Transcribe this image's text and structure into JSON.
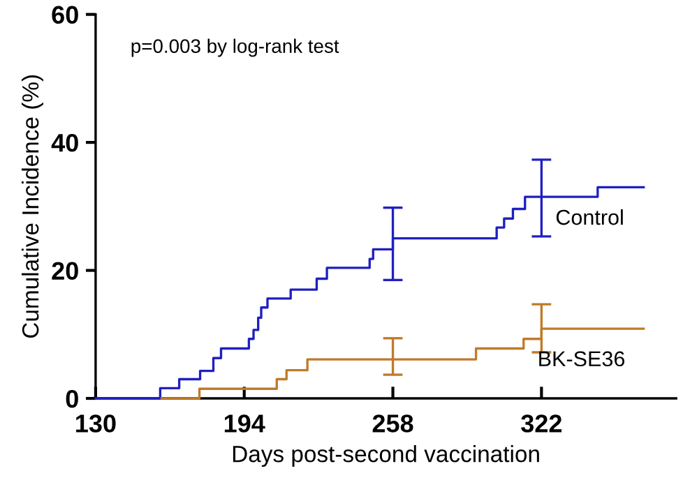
{
  "chart_data": {
    "type": "step",
    "xlabel": "Days post-second vaccination",
    "ylabel": "Cumulative Incidence (%)",
    "annotations": [
      "p=0.003 by log-rank test"
    ],
    "xlim": [
      130,
      380
    ],
    "ylim": [
      0,
      60
    ],
    "xticks": [
      130,
      194,
      258,
      322
    ],
    "yticks": [
      0,
      20,
      40,
      60
    ],
    "grid": false,
    "legend": false,
    "marker": "none",
    "line_style": "solid",
    "series": [
      {
        "name": "Control",
        "color": "#2020c0",
        "x": [
          130,
          157.8,
          166,
          175,
          180.7,
          184,
          196,
          198,
          200,
          201.3,
          204,
          214,
          225.2,
          229.6,
          248,
          249.5,
          258,
          302.7,
          305.9,
          309.7,
          314.9,
          322,
          346.2,
          366
        ],
        "values": [
          0,
          1.6,
          3.0,
          4.3,
          6.3,
          7.8,
          9.3,
          10.7,
          12.6,
          14.2,
          15.6,
          17.0,
          18.7,
          20.4,
          21.8,
          23.3,
          25.0,
          26.7,
          28.1,
          29.6,
          31.5,
          31.5,
          33.0,
          33.0
        ],
        "errors": [
          null,
          null,
          null,
          null,
          null,
          null,
          null,
          null,
          null,
          null,
          null,
          null,
          null,
          null,
          null,
          null,
          [
            18.5,
            29.8
          ],
          null,
          null,
          null,
          null,
          [
            25.3,
            37.3
          ],
          null,
          null
        ]
      },
      {
        "name": "BK-SE36",
        "color": "#c07a2a",
        "x": [
          158.4,
          174.7,
          208,
          212.2,
          221.2,
          258,
          293.8,
          314.3,
          322,
          366
        ],
        "values": [
          0,
          1.5,
          3.0,
          4.4,
          6.1,
          6.1,
          7.8,
          9.3,
          10.9,
          10.9
        ],
        "errors": [
          null,
          null,
          null,
          null,
          null,
          [
            3.7,
            9.4
          ],
          null,
          null,
          [
            7.2,
            14.7
          ],
          null
        ]
      }
    ]
  }
}
